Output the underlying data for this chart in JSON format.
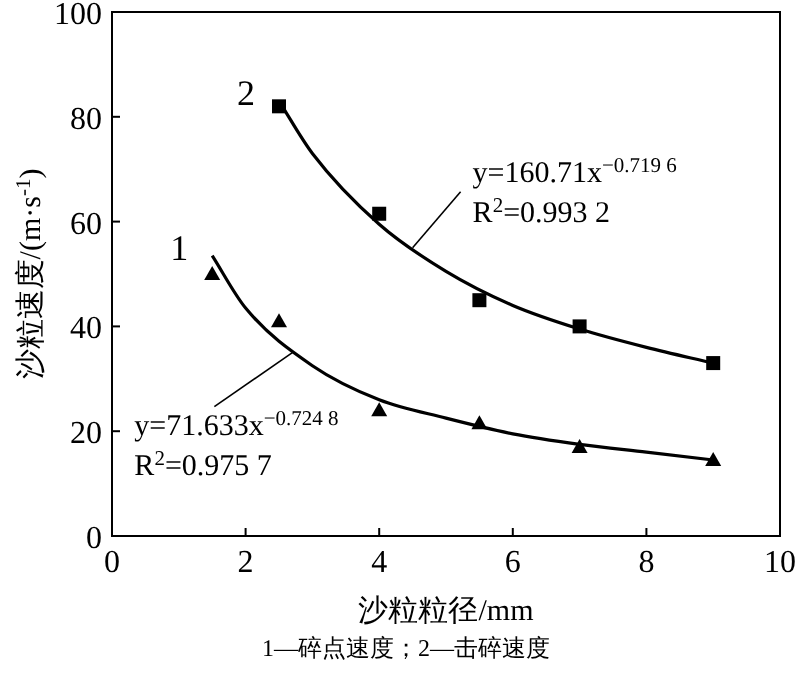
{
  "chart_data": {
    "type": "scatter",
    "xlabel": "沙粒粒径/mm",
    "ylabel": "沙粒速度/(m·s$^{-1}$)",
    "xlim": [
      0,
      10
    ],
    "ylim": [
      0,
      100
    ],
    "xticks": [
      0,
      2,
      4,
      6,
      8,
      10
    ],
    "yticks": [
      0,
      20,
      40,
      60,
      80,
      100
    ],
    "series": [
      {
        "marker": "triangle",
        "color": "#000000",
        "x": [
          1.5,
          2.5,
          4,
          5.5,
          7,
          9
        ],
        "values": [
          50,
          41,
          24,
          21.5,
          17,
          14.5
        ]
      },
      {
        "marker": "square",
        "color": "#000000",
        "x": [
          2.5,
          4,
          5.5,
          7,
          9
        ],
        "values": [
          82,
          61.5,
          45,
          40,
          33
        ]
      },
      {
        "type": "line",
        "name": "1",
        "color": "#000000",
        "x": [
          1.5,
          2,
          3,
          4,
          5,
          6,
          7,
          8,
          9
        ],
        "values": [
          53.5,
          43.5,
          32.5,
          26,
          22.5,
          19.5,
          17.5,
          16,
          14.5
        ]
      },
      {
        "type": "line",
        "name": "2",
        "color": "#000000",
        "x": [
          2.5,
          3,
          4,
          5,
          6,
          7,
          8,
          9
        ],
        "values": [
          83,
          73,
          59.5,
          50.5,
          44,
          39.5,
          36,
          33
        ]
      }
    ],
    "annotations": [
      {
        "text": "y=71.633x$^{−0.724 8}$",
        "x": 2.7,
        "y": 35
      },
      "R$^{2}$=0.975 7",
      {
        "text": "y=160.71x$^{−0.719 6}$",
        "x": 4.5,
        "y": 55
      },
      "R$^{2}$=0.993 2",
      "1—碎点速度；2—击碎速度"
    ]
  }
}
